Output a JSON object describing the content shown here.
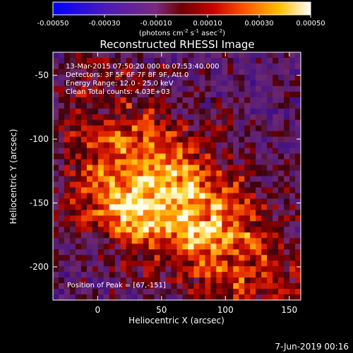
{
  "colorbar": {
    "ticks": [
      -0.0005,
      -0.0003,
      -0.0001,
      0.0001,
      0.0003,
      0.0005
    ],
    "tick_labels": [
      "-0.00050",
      "-0.00030",
      "-0.00010",
      "0.00010",
      "0.00030",
      "0.00050"
    ],
    "range": [
      -0.0005,
      0.0005
    ],
    "units_prefix": "(photons cm",
    "units_exp1": "-2",
    "units_mid": " s",
    "units_exp2": "-1",
    "units_mid2": " asec",
    "units_exp3": "-2",
    "units_suffix": ")"
  },
  "chart_data": {
    "type": "heatmap",
    "title": "Reconstructed RHESSI Image",
    "xlabel": "Heliocentric X (arcsec)",
    "ylabel": "Heliocentric Y (arcsec)",
    "x_ticks": [
      0,
      50,
      100,
      150
    ],
    "y_ticks": [
      -50,
      -100,
      -150,
      -200
    ],
    "xlim": [
      -35,
      159
    ],
    "ylim": [
      -226,
      -32
    ],
    "peak": [
      67,
      -151
    ],
    "info_lines": [
      "13-Mar-2015 07:50:20.000 to 07:53:40.000",
      "Detectors: 3F 5F 6F 7F 8F 9F, Att 0",
      "Energy Range: 12.0 - 25.0 keV",
      "Clean      Total counts: 4.03E+03"
    ],
    "peak_label": "Position of Peak = [67,-151]"
  },
  "footer": {
    "date": "7-Jun-2019 00:16"
  }
}
